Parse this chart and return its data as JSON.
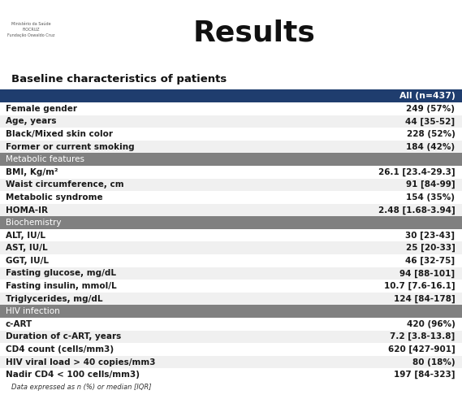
{
  "title": "Results",
  "subtitle": "Baseline characteristics of patients",
  "header_bg": "#1f3d6e",
  "header_text_color": "#ffffff",
  "section_bg": "#808080",
  "section_text_color": "#ffffff",
  "row_bg_light": "#f0f0f0",
  "row_bg_white": "#ffffff",
  "top_bar_color": "#a8c4d8",
  "col_header": "All (n=437)",
  "footer": "Data expressed as n (%) or median [IQR]",
  "rows": [
    {
      "label": "Female gender",
      "value": "249 (57%)",
      "type": "data"
    },
    {
      "label": "Age, years",
      "value": "44 [35-52]",
      "type": "data"
    },
    {
      "label": "Black/Mixed skin color",
      "value": "228 (52%)",
      "type": "data"
    },
    {
      "label": "Former or current smoking",
      "value": "184 (42%)",
      "type": "data"
    },
    {
      "label": "Metabolic features",
      "value": "",
      "type": "section"
    },
    {
      "label": "BMI, Kg/m²",
      "value": "26.1 [23.4-29.3]",
      "type": "data"
    },
    {
      "label": "Waist circumference, cm",
      "value": "91 [84-99]",
      "type": "data"
    },
    {
      "label": "Metabolic syndrome",
      "value": "154 (35%)",
      "type": "data"
    },
    {
      "label": "HOMA-IR",
      "value": "2.48 [1.68-3.94]",
      "type": "data"
    },
    {
      "label": "Biochemistry",
      "value": "",
      "type": "section"
    },
    {
      "label": "ALT, IU/L",
      "value": "30 [23-43]",
      "type": "data"
    },
    {
      "label": "AST, IU/L",
      "value": "25 [20-33]",
      "type": "data"
    },
    {
      "label": "GGT, IU/L",
      "value": "46 [32-75]",
      "type": "data"
    },
    {
      "label": "Fasting glucose, mg/dL",
      "value": "94 [88-101]",
      "type": "data"
    },
    {
      "label": "Fasting insulin, mmol/L",
      "value": "10.7 [7.6-16.1]",
      "type": "data"
    },
    {
      "label": "Triglycerides, mg/dL",
      "value": "124 [84-178]",
      "type": "data"
    },
    {
      "label": "HIV infection",
      "value": "",
      "type": "section"
    },
    {
      "label": "c-ART",
      "value": "420 (96%)",
      "type": "data"
    },
    {
      "label": "Duration of c-ART, years",
      "value": "7.2 [3.8-13.8]",
      "type": "data"
    },
    {
      "label": "CD4 count (cells/mm3)",
      "value": "620 [427-901]",
      "type": "data"
    },
    {
      "label": "HIV viral load > 40 copies/mm3",
      "value": "80 (18%)",
      "type": "data"
    },
    {
      "label": "Nadir CD4 < 100 cells/mm3)",
      "value": "197 [84-323]",
      "type": "data"
    }
  ]
}
